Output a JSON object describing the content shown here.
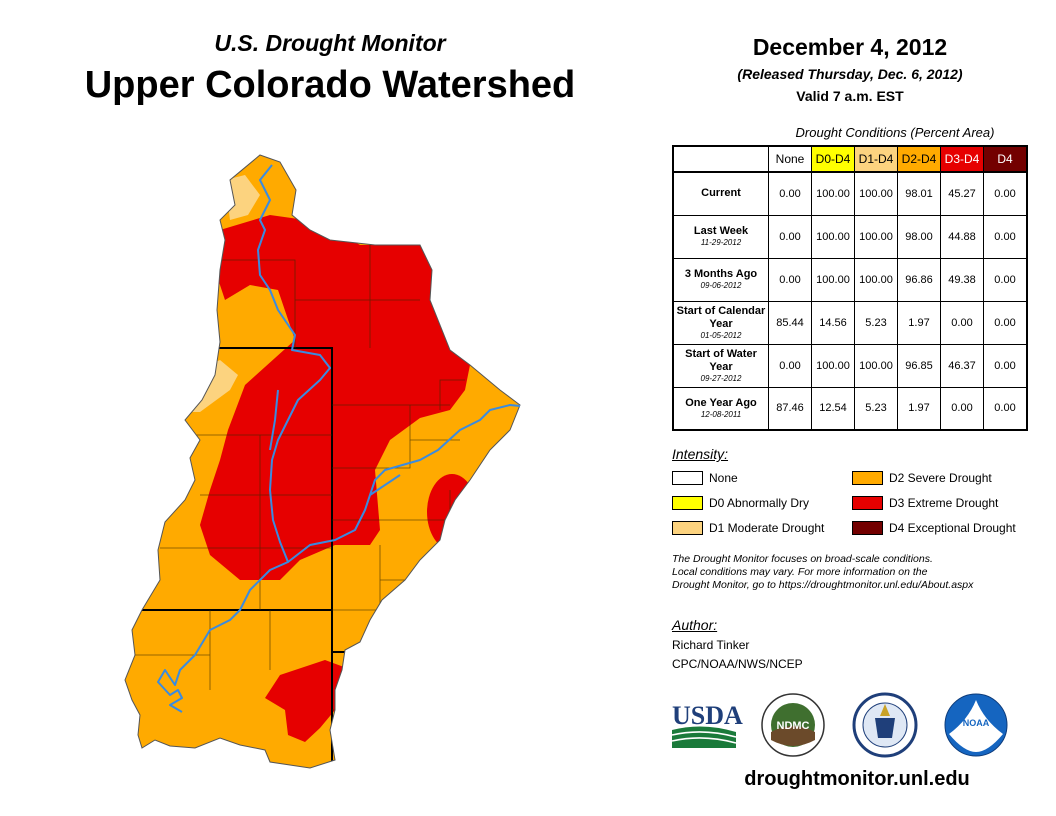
{
  "header": {
    "subtitle": "U.S. Drought Monitor",
    "title": "Upper Colorado Watershed",
    "date": "December 4, 2012",
    "released": "(Released Thursday, Dec. 6, 2012)",
    "valid": "Valid 7 a.m. EST"
  },
  "conditions": {
    "title": "Drought Conditions (Percent Area)",
    "columns": [
      {
        "label": "None",
        "color": "#ffffff",
        "text": "#000000"
      },
      {
        "label": "D0-D4",
        "color": "#ffff00",
        "text": "#000000"
      },
      {
        "label": "D1-D4",
        "color": "#fcd37f",
        "text": "#000000"
      },
      {
        "label": "D2-D4",
        "color": "#ffaa00",
        "text": "#000000"
      },
      {
        "label": "D3-D4",
        "color": "#e60000",
        "text": "#ffffff"
      },
      {
        "label": "D4",
        "color": "#730000",
        "text": "#ffffff"
      }
    ],
    "rows": [
      {
        "label": "Current",
        "sublabel": "",
        "values": [
          "0.00",
          "100.00",
          "100.00",
          "98.01",
          "45.27",
          "0.00"
        ]
      },
      {
        "label": "Last Week",
        "sublabel": "11-29-2012",
        "values": [
          "0.00",
          "100.00",
          "100.00",
          "98.00",
          "44.88",
          "0.00"
        ]
      },
      {
        "label": "3 Months Ago",
        "sublabel": "09-06-2012",
        "values": [
          "0.00",
          "100.00",
          "100.00",
          "96.86",
          "49.38",
          "0.00"
        ]
      },
      {
        "label": "Start of Calendar Year",
        "sublabel": "01-05-2012",
        "values": [
          "85.44",
          "14.56",
          "5.23",
          "1.97",
          "0.00",
          "0.00"
        ]
      },
      {
        "label": "Start of Water Year",
        "sublabel": "09-27-2012",
        "values": [
          "0.00",
          "100.00",
          "100.00",
          "96.85",
          "46.37",
          "0.00"
        ]
      },
      {
        "label": "One Year Ago",
        "sublabel": "12-08-2011",
        "values": [
          "87.46",
          "12.54",
          "5.23",
          "1.97",
          "0.00",
          "0.00"
        ]
      }
    ]
  },
  "legend": {
    "title": "Intensity:",
    "items": [
      {
        "label": "None",
        "color": "#ffffff"
      },
      {
        "label": "D0 Abnormally Dry",
        "color": "#ffff00"
      },
      {
        "label": "D1 Moderate Drought",
        "color": "#fcd37f"
      },
      {
        "label": "D2 Severe Drought",
        "color": "#ffaa00"
      },
      {
        "label": "D3 Extreme Drought",
        "color": "#e60000"
      },
      {
        "label": "D4 Exceptional Drought",
        "color": "#730000"
      }
    ]
  },
  "note": {
    "line1": "The Drought Monitor focuses on broad-scale conditions.",
    "line2": "Local conditions may vary. For more information on the",
    "line3": "Drought Monitor, go to https://droughtmonitor.unl.edu/About.aspx"
  },
  "author": {
    "label": "Author:",
    "name": "Richard Tinker",
    "org": "CPC/NOAA/NWS/NCEP"
  },
  "logos": {
    "usda": "USDA",
    "ndmc": "NDMC",
    "noaa": "NOAA"
  },
  "website": "droughtmonitor.unl.edu",
  "map_colors": {
    "d1": "#fcd37f",
    "d2": "#ffaa00",
    "d3": "#e60000",
    "river": "#3a8be0"
  }
}
